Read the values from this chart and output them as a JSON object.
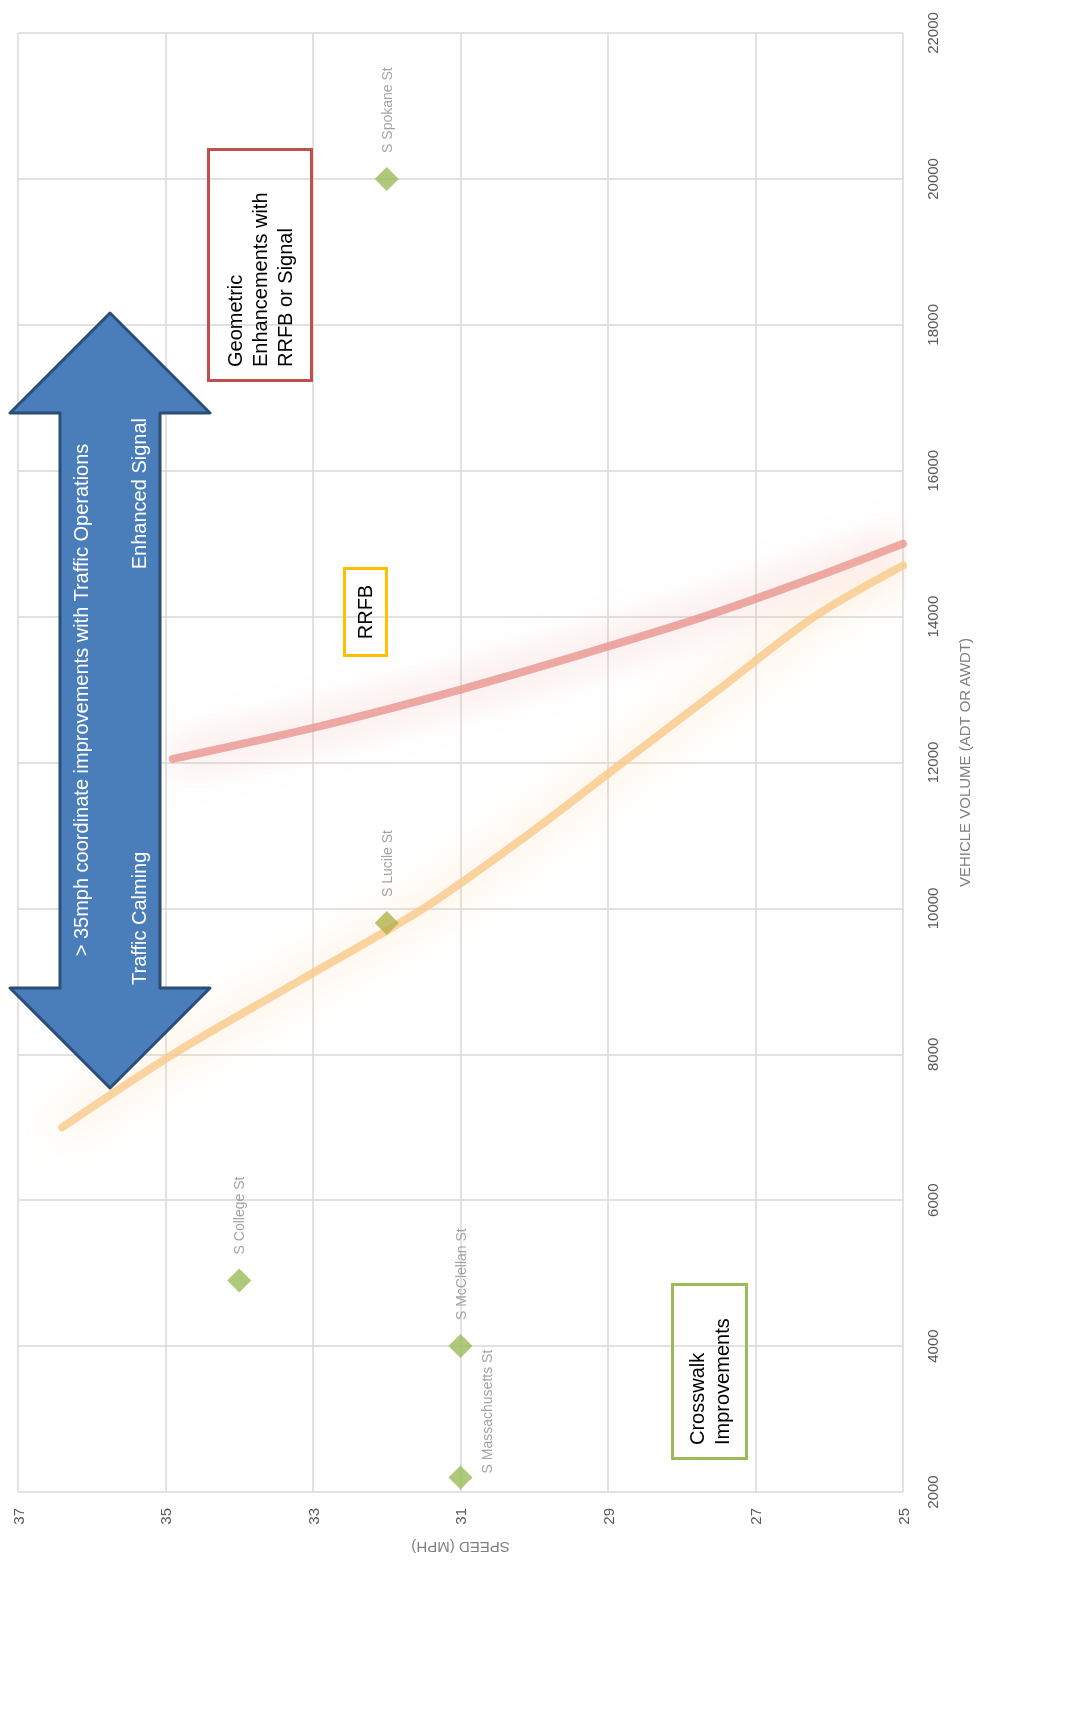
{
  "chart_data": {
    "type": "scatter",
    "xlabel": "SPEED (MPH)",
    "ylabel": "VEHICLE VOLUME (ADT OR AWDT)",
    "xlim": [
      37,
      25
    ],
    "xticks": [
      37,
      35,
      33,
      31,
      29,
      27,
      25
    ],
    "ylim": [
      2000,
      22000
    ],
    "yticks": [
      2000,
      4000,
      6000,
      8000,
      10000,
      12000,
      14000,
      16000,
      18000,
      20000,
      22000
    ],
    "grid": true,
    "series": [
      {
        "marker": "diamond",
        "x": [
          32,
          32,
          34,
          31,
          31
        ],
        "values": [
          20000,
          9800,
          4900,
          4000,
          2200
        ],
        "colors": [
          "#9bbb59",
          "#b3b24b",
          "#9bbb59",
          "#9bbb59",
          "#9bbb59"
        ],
        "value_labels": [
          "S Spokane St",
          "S Lucile St",
          "S College St",
          "S McClellan St",
          "S Massachusetts St"
        ]
      },
      {
        "type": "line",
        "marker": "none",
        "color": "#ea9590",
        "x": [
          34.9,
          32.9,
          31,
          29.3,
          27.7,
          26.3,
          25
        ],
        "values": [
          12050,
          12500,
          13000,
          13500,
          14000,
          14500,
          15000
        ]
      },
      {
        "type": "line",
        "marker": "none",
        "color": "#f9c98a",
        "x": [
          36.4,
          34.9,
          33.2,
          31.5,
          30.1,
          28.8,
          27.5,
          26.2,
          25
        ],
        "values": [
          7000,
          8000,
          9000,
          10000,
          11000,
          12000,
          13000,
          14000,
          14700
        ]
      }
    ],
    "annotations": [
      "> 35mph coordinate improvements with Traffic Operations",
      "Traffic Calming",
      "Enhanced Signal",
      "Geometric Enhancements with RRFB or Signal",
      "RRFB",
      "Crosswalk Improvements"
    ]
  }
}
